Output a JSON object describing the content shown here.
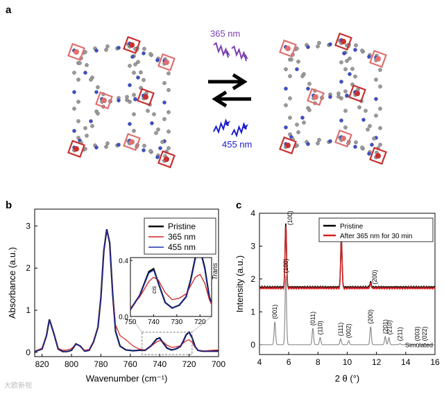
{
  "figure": {
    "panel_a": {
      "letter": "a",
      "uv_label": "365 nm",
      "blue_label": "455 nm",
      "uv_color": "#7b3fb0",
      "blue_color": "#1a1acc"
    },
    "panel_b": {
      "letter": "b"
    },
    "panel_c": {
      "letter": "c"
    },
    "watermark": "大欧新视"
  },
  "chart_data": [
    {
      "type": "line",
      "panel": "b",
      "xlabel": "Wavenumber (cm⁻¹)",
      "ylabel": "Absorbance (a.u.)",
      "xlim": [
        825,
        700
      ],
      "ylim": [
        -0.1,
        3.4
      ],
      "x_reversed": true,
      "xticks": [
        "820",
        "800",
        "780",
        "760",
        "740",
        "720",
        "700"
      ],
      "xtick_values": [
        820,
        800,
        780,
        760,
        740,
        720,
        700
      ],
      "yticks": [
        "0",
        "1",
        "2",
        "3"
      ],
      "ytick_values": [
        0,
        1,
        2,
        3
      ],
      "legend": "top-right",
      "series": [
        {
          "name": "Pristine",
          "color": "#000000",
          "x": [
            825,
            820,
            817,
            815,
            812,
            809,
            806,
            803,
            800,
            797,
            794,
            791,
            788,
            785,
            782,
            780,
            778,
            776,
            774,
            772,
            770,
            767,
            763,
            758,
            754,
            750,
            746,
            742,
            740,
            738,
            735,
            732,
            729,
            726,
            724,
            722,
            720,
            718,
            716,
            714,
            711,
            708,
            705,
            700
          ],
          "y": [
            0.02,
            0.08,
            0.4,
            0.78,
            0.45,
            0.08,
            0.02,
            0.02,
            0.05,
            0.2,
            0.15,
            0.03,
            0.05,
            0.25,
            0.6,
            1.3,
            2.4,
            2.92,
            2.6,
            1.4,
            0.5,
            0.15,
            0.06,
            0.04,
            0.05,
            0.05,
            0.15,
            0.32,
            0.34,
            0.24,
            0.1,
            0.06,
            0.08,
            0.14,
            0.26,
            0.42,
            0.48,
            0.35,
            0.14,
            0.05,
            0.03,
            0.03,
            0.03,
            0.03
          ]
        },
        {
          "name": "365 nm",
          "color": "#d42020",
          "x": [
            825,
            820,
            817,
            815,
            812,
            809,
            806,
            803,
            800,
            797,
            794,
            791,
            788,
            785,
            782,
            780,
            778,
            776,
            774,
            772,
            770,
            767,
            763,
            758,
            754,
            750,
            746,
            742,
            740,
            738,
            735,
            732,
            729,
            726,
            724,
            722,
            720,
            718,
            716,
            714,
            711,
            708,
            705,
            700
          ],
          "y": [
            0.03,
            0.1,
            0.42,
            0.76,
            0.46,
            0.1,
            0.05,
            0.06,
            0.09,
            0.2,
            0.15,
            0.05,
            0.07,
            0.27,
            0.62,
            1.32,
            2.4,
            2.9,
            2.6,
            1.45,
            0.65,
            0.4,
            0.3,
            0.15,
            0.08,
            0.06,
            0.14,
            0.25,
            0.28,
            0.26,
            0.17,
            0.12,
            0.13,
            0.16,
            0.22,
            0.28,
            0.3,
            0.24,
            0.12,
            0.05,
            0.04,
            0.04,
            0.05,
            0.06
          ]
        },
        {
          "name": "455 nm",
          "color": "#1c2fb0",
          "x": [
            825,
            820,
            817,
            815,
            812,
            809,
            806,
            803,
            800,
            797,
            794,
            791,
            788,
            785,
            782,
            780,
            778,
            776,
            774,
            772,
            770,
            767,
            763,
            758,
            754,
            750,
            746,
            742,
            740,
            738,
            735,
            732,
            729,
            726,
            724,
            722,
            720,
            718,
            716,
            714,
            711,
            708,
            705,
            700
          ],
          "y": [
            0.02,
            0.08,
            0.4,
            0.77,
            0.45,
            0.08,
            0.02,
            0.02,
            0.05,
            0.2,
            0.15,
            0.03,
            0.05,
            0.25,
            0.6,
            1.3,
            2.4,
            2.91,
            2.6,
            1.4,
            0.5,
            0.15,
            0.06,
            0.04,
            0.05,
            0.05,
            0.15,
            0.31,
            0.33,
            0.24,
            0.1,
            0.06,
            0.08,
            0.14,
            0.25,
            0.41,
            0.47,
            0.34,
            0.14,
            0.05,
            0.03,
            0.03,
            0.03,
            0.03
          ]
        }
      ],
      "inset": {
        "xlim": [
          750,
          715
        ],
        "ylim": [
          0.0,
          0.42
        ],
        "xticks": [
          "750",
          "740",
          "730",
          "720"
        ],
        "xtick_values": [
          750,
          740,
          730,
          720
        ],
        "yticks": [
          "0.0",
          "0.4"
        ],
        "ytick_values": [
          0.0,
          0.4
        ],
        "annotations": [
          "cis",
          "Trans"
        ]
      }
    },
    {
      "type": "line",
      "panel": "c",
      "xlabel": "2 θ (°)",
      "ylabel": "Intensity (a.u.)",
      "xlim": [
        4,
        16
      ],
      "ylim": [
        -0.3,
        4.0
      ],
      "xticks": [
        "4",
        "6",
        "8",
        "10",
        "12",
        "14",
        "16"
      ],
      "xtick_values": [
        4,
        6,
        8,
        10,
        12,
        14,
        16
      ],
      "yticks": [
        "0",
        "1",
        "2",
        "3",
        "4"
      ],
      "ytick_values": [
        0,
        1,
        2,
        3,
        4
      ],
      "legend": "top-right",
      "series": [
        {
          "name": "Pristine",
          "color": "#000000",
          "baseline": 1.75,
          "peaks": [
            [
              5.8,
              1.95
            ],
            [
              9.6,
              1.5
            ],
            [
              11.6,
              0.15
            ]
          ]
        },
        {
          "name": "After 365 nm for 30 min",
          "color": "#d42020",
          "baseline": 1.72,
          "peaks": [
            [
              5.8,
              1.9
            ],
            [
              9.6,
              1.45
            ],
            [
              11.6,
              0.13
            ]
          ]
        },
        {
          "name": "Simulated",
          "color": "#8c8c8c",
          "baseline": 0.0,
          "peaks": [
            [
              5.05,
              0.7
            ],
            [
              5.8,
              2.1
            ],
            [
              7.65,
              0.5
            ],
            [
              8.15,
              0.22
            ],
            [
              9.55,
              0.18
            ],
            [
              10.1,
              0.12
            ],
            [
              11.6,
              0.55
            ],
            [
              12.6,
              0.25
            ],
            [
              12.85,
              0.22
            ],
            [
              13.6,
              0.03
            ],
            [
              14.8,
              0.03
            ],
            [
              15.3,
              0.03
            ]
          ]
        }
      ],
      "peak_labels": {
        "measured": [
          {
            "label": "(100)",
            "x": 5.8
          },
          {
            "label": "(111)",
            "x": 9.6
          },
          {
            "label": "(200)",
            "x": 11.6
          }
        ],
        "simulated": [
          {
            "label": "(001)",
            "x": 5.05
          },
          {
            "label": "(100)",
            "x": 5.8
          },
          {
            "label": "(011)",
            "x": 7.65
          },
          {
            "label": "(110)",
            "x": 8.15
          },
          {
            "label": "(111)",
            "x": 9.55
          },
          {
            "label": "(002)",
            "x": 10.1
          },
          {
            "label": "(200)",
            "x": 11.6
          },
          {
            "label": "(201)",
            "x": 12.6
          },
          {
            "label": "(210)",
            "x": 12.9
          },
          {
            "label": "(211)",
            "x": 13.6
          },
          {
            "label": "(003)",
            "x": 14.8
          },
          {
            "label": "(022)",
            "x": 15.3
          }
        ]
      },
      "simulated_label": "Simulated"
    }
  ]
}
